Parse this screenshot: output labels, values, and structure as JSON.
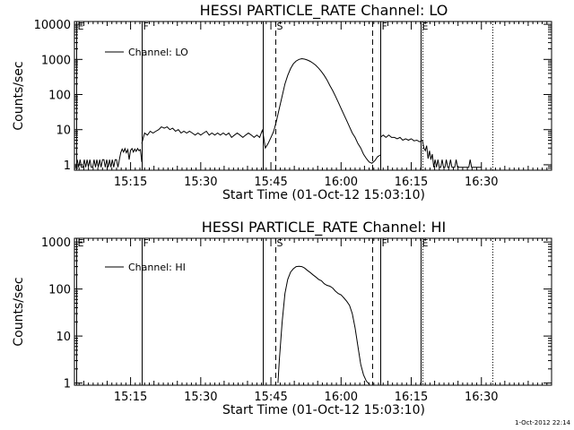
{
  "stamp": "1-Oct-2012 22:14",
  "chart_data": [
    {
      "type": "line",
      "title": "HESSI PARTICLE_RATE Channel: LO",
      "xlabel": "Start Time (01-Oct-12 15:03:10)",
      "ylabel": "Counts/sec",
      "yscale": "log",
      "xlim": [
        15.05,
        16.75
      ],
      "ylim": [
        0.7,
        12000
      ],
      "xticks": [
        {
          "t": 15.25,
          "label": "15:15"
        },
        {
          "t": 15.5,
          "label": "15:30"
        },
        {
          "t": 15.75,
          "label": "15:45"
        },
        {
          "t": 16.0,
          "label": "16:00"
        },
        {
          "t": 16.25,
          "label": "16:15"
        },
        {
          "t": 16.5,
          "label": "16:30"
        }
      ],
      "yticks": [
        {
          "v": 1,
          "label": "1"
        },
        {
          "v": 10,
          "label": "10"
        },
        {
          "v": 100,
          "label": "100"
        },
        {
          "v": 1000,
          "label": "1000"
        },
        {
          "v": 10000,
          "label": "10000"
        }
      ],
      "legend": {
        "label": "Channel: LO",
        "position": "top-left"
      },
      "markers": [
        {
          "t": 15.057,
          "style": "solid",
          "letter": "E"
        },
        {
          "t": 15.29,
          "style": "solid",
          "letter": "F"
        },
        {
          "t": 15.72,
          "style": "solid",
          "letter": ""
        },
        {
          "t": 15.765,
          "style": "dashed",
          "letter": "S"
        },
        {
          "t": 16.11,
          "style": "dashed",
          "letter": ""
        },
        {
          "t": 16.14,
          "style": "solid",
          "letter": "F"
        },
        {
          "t": 16.285,
          "style": "solid",
          "letter": "E"
        },
        {
          "t": 16.29,
          "style": "dotted",
          "letter": ""
        },
        {
          "t": 16.54,
          "style": "dotted",
          "letter": ""
        }
      ],
      "series": [
        {
          "name": "Channel: LO",
          "segments": [
            {
              "t": [
                15.055,
                15.06,
                15.065,
                15.07,
                15.075,
                15.08,
                15.085,
                15.09,
                15.095,
                15.1,
                15.105,
                15.11,
                15.115,
                15.12,
                15.125,
                15.13,
                15.135,
                15.14,
                15.145,
                15.15,
                15.155,
                15.16,
                15.165,
                15.17,
                15.175,
                15.18,
                15.185,
                15.19,
                15.195,
                15.2,
                15.205,
                15.21,
                15.215,
                15.22,
                15.225,
                15.23,
                15.235,
                15.24,
                15.245,
                15.25,
                15.255,
                15.26,
                15.265,
                15.27,
                15.275,
                15.28,
                15.285,
                15.29
              ],
              "v": [
                0.85,
                1.4,
                0.85,
                1.4,
                0.85,
                0.85,
                1.4,
                0.85,
                1.4,
                0.85,
                1.4,
                0.85,
                0.85,
                1.4,
                0.85,
                1.4,
                0.85,
                1.4,
                0.85,
                1.4,
                1.4,
                0.85,
                1.4,
                0.85,
                1.4,
                0.85,
                1.4,
                0.85,
                1.4,
                1.4,
                0.85,
                1.4,
                2.2,
                2.8,
                2.3,
                2.9,
                2.2,
                2.7,
                1.4,
                2.6,
                2.9,
                2.3,
                2.8,
                2.4,
                2.9,
                2.5,
                2.7,
                1.2
              ]
            },
            {
              "t": [
                15.29,
                15.3,
                15.31,
                15.32,
                15.33,
                15.34,
                15.35,
                15.36,
                15.37,
                15.38,
                15.39,
                15.4,
                15.41,
                15.42,
                15.43,
                15.44,
                15.45,
                15.46,
                15.47,
                15.48,
                15.49,
                15.5,
                15.51,
                15.52,
                15.53,
                15.54,
                15.55,
                15.56,
                15.57,
                15.58,
                15.59,
                15.6,
                15.61,
                15.62,
                15.63,
                15.64,
                15.65,
                15.66,
                15.67,
                15.68,
                15.69,
                15.7,
                15.71,
                15.72,
                15.73,
                15.74,
                15.75,
                15.76,
                15.77,
                15.78,
                15.79,
                15.8,
                15.81,
                15.82,
                15.83,
                15.84,
                15.85,
                15.86,
                15.87,
                15.88,
                15.89,
                15.9,
                15.91,
                15.92,
                15.93,
                15.94,
                15.95,
                15.96,
                15.97,
                15.98,
                15.99,
                16.0,
                16.01,
                16.02,
                16.03,
                16.04,
                16.05,
                16.06,
                16.07,
                16.08,
                16.09,
                16.1,
                16.11,
                16.12,
                16.13,
                16.14
              ],
              "v": [
                4,
                8,
                7,
                9,
                8,
                9,
                10,
                12,
                11,
                12,
                10,
                11,
                9,
                10,
                8,
                9,
                8,
                9,
                8,
                7,
                8,
                7,
                8,
                9,
                7,
                8,
                7,
                8,
                7,
                8,
                7,
                8,
                6,
                7,
                8,
                7,
                6,
                7,
                8,
                7,
                6,
                7,
                6,
                10,
                3,
                4,
                6,
                9,
                18,
                40,
                90,
                200,
                350,
                550,
                750,
                900,
                1000,
                1050,
                1020,
                960,
                880,
                780,
                680,
                560,
                450,
                350,
                260,
                180,
                130,
                90,
                60,
                40,
                27,
                18,
                12,
                8,
                6,
                4,
                3,
                2,
                1.5,
                1.2,
                1.1,
                1.3,
                1.7,
                1.9
              ]
            },
            {
              "t": [
                16.14,
                16.15,
                16.16,
                16.17,
                16.18,
                16.19,
                16.2,
                16.21,
                16.22,
                16.23,
                16.24,
                16.25,
                16.26,
                16.27,
                16.28,
                16.29
              ],
              "v": [
                6,
                7,
                6,
                7,
                6,
                6,
                5.5,
                6,
                5,
                5.5,
                5,
                5.5,
                4.8,
                5,
                4.5,
                5
              ]
            },
            {
              "t": [
                16.29,
                16.295,
                16.3,
                16.305,
                16.31,
                16.315,
                16.32,
                16.325,
                16.33,
                16.335,
                16.34,
                16.345,
                16.35,
                16.355,
                16.36,
                16.365,
                16.37,
                16.375,
                16.38,
                16.385,
                16.39,
                16.395,
                16.4,
                16.405,
                16.41,
                16.415,
                16.42,
                16.425,
                16.43,
                16.435,
                16.44,
                16.445,
                16.45,
                16.455,
                16.46,
                16.465,
                16.47,
                16.475,
                16.48,
                16.485,
                16.49,
                16.495,
                16.5
              ],
              "v": [
                5,
                3,
                2.5,
                3.5,
                1.5,
                2.5,
                1.4,
                2,
                0.85,
                1.4,
                0.85,
                1.4,
                0.85,
                0.85,
                1.4,
                0.85,
                0.85,
                1.4,
                0.85,
                0.85,
                1.4,
                0.85,
                0.85,
                0.85,
                1.4,
                0.85,
                0.85,
                0.85,
                0.85,
                0.85,
                0.85,
                0.85,
                0.85,
                0.85,
                1.4,
                0.85,
                0.85,
                0.85,
                0.85,
                0.85,
                0.85,
                0.85,
                0.85
              ]
            }
          ]
        }
      ]
    },
    {
      "type": "line",
      "title": "HESSI PARTICLE_RATE Channel: HI",
      "xlabel": "Start Time (01-Oct-12 15:03:10)",
      "ylabel": "Counts/sec",
      "yscale": "log",
      "xlim": [
        15.05,
        16.75
      ],
      "ylim": [
        0.9,
        1200
      ],
      "xticks": [
        {
          "t": 15.25,
          "label": "15:15"
        },
        {
          "t": 15.5,
          "label": "15:30"
        },
        {
          "t": 15.75,
          "label": "15:45"
        },
        {
          "t": 16.0,
          "label": "16:00"
        },
        {
          "t": 16.25,
          "label": "16:15"
        },
        {
          "t": 16.5,
          "label": "16:30"
        }
      ],
      "yticks": [
        {
          "v": 1,
          "label": "1"
        },
        {
          "v": 10,
          "label": "10"
        },
        {
          "v": 100,
          "label": "100"
        },
        {
          "v": 1000,
          "label": "1000"
        }
      ],
      "legend": {
        "label": "Channel: HI",
        "position": "top-left"
      },
      "markers": [
        {
          "t": 15.057,
          "style": "solid",
          "letter": "E"
        },
        {
          "t": 15.29,
          "style": "solid",
          "letter": "F"
        },
        {
          "t": 15.72,
          "style": "solid",
          "letter": ""
        },
        {
          "t": 15.765,
          "style": "dashed",
          "letter": "S"
        },
        {
          "t": 16.11,
          "style": "dashed",
          "letter": ""
        },
        {
          "t": 16.14,
          "style": "solid",
          "letter": "F"
        },
        {
          "t": 16.285,
          "style": "solid",
          "letter": "E"
        },
        {
          "t": 16.29,
          "style": "dotted",
          "letter": ""
        },
        {
          "t": 16.54,
          "style": "dotted",
          "letter": ""
        }
      ],
      "series": [
        {
          "name": "Channel: HI",
          "segments": [
            {
              "t": [
                15.775,
                15.78,
                15.79,
                15.8,
                15.81,
                15.82,
                15.83,
                15.84,
                15.85,
                15.86,
                15.87,
                15.88,
                15.89,
                15.9,
                15.91,
                15.92,
                15.93,
                15.94,
                15.95,
                15.96,
                15.97,
                15.98,
                15.99,
                16.0,
                16.01,
                16.02,
                16.03,
                16.04,
                16.05,
                16.06,
                16.07,
                16.08,
                16.09,
                16.1
              ],
              "v": [
                1,
                3,
                20,
                80,
                160,
                230,
                270,
                300,
                305,
                300,
                280,
                250,
                225,
                200,
                180,
                160,
                150,
                130,
                120,
                115,
                105,
                90,
                80,
                75,
                65,
                55,
                45,
                30,
                15,
                6,
                2.5,
                1.5,
                1.1,
                0.95
              ]
            }
          ]
        }
      ]
    }
  ]
}
